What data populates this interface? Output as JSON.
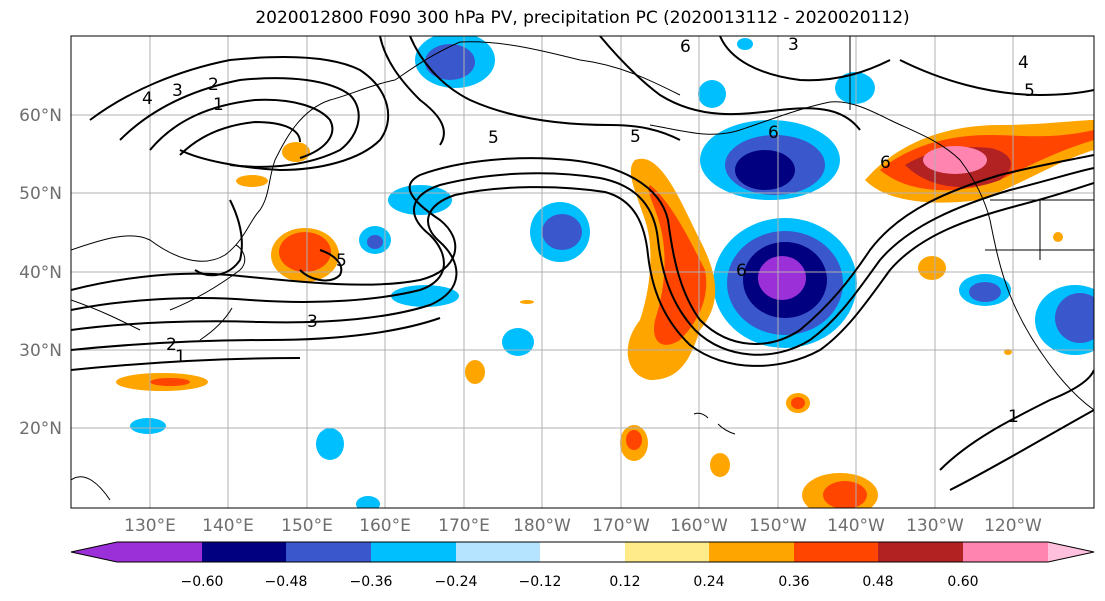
{
  "title": "2020012800 F090 300 hPa PV, precipitation PC (2020013112 - 2020020112)",
  "lat_labels": [
    "60°N",
    "50°N",
    "40°N",
    "30°N",
    "20°N"
  ],
  "lon_labels": [
    "130°E",
    "140°E",
    "150°E",
    "160°E",
    "170°E",
    "180°W",
    "170°W",
    "160°W",
    "150°W",
    "140°W",
    "130°W",
    "120°W"
  ],
  "colorbar": {
    "ticks": [
      "−0.60",
      "−0.48",
      "−0.36",
      "−0.24",
      "−0.12",
      "0.12",
      "0.24",
      "0.36",
      "0.48",
      "0.60"
    ],
    "colors": [
      "#9b30d9",
      "#000080",
      "#3a57cc",
      "#00bfff",
      "#b4e4ff",
      "#ffffff",
      "#ffeb8a",
      "#ffa500",
      "#ff4500",
      "#b22222",
      "#ff85b0",
      "#ffc0de"
    ]
  },
  "contour_labels": [
    "4",
    "3",
    "2",
    "1",
    "5",
    "5",
    "6",
    "3",
    "5",
    "4",
    "5",
    "6",
    "6",
    "3",
    "2",
    "1",
    "1",
    "6"
  ]
}
